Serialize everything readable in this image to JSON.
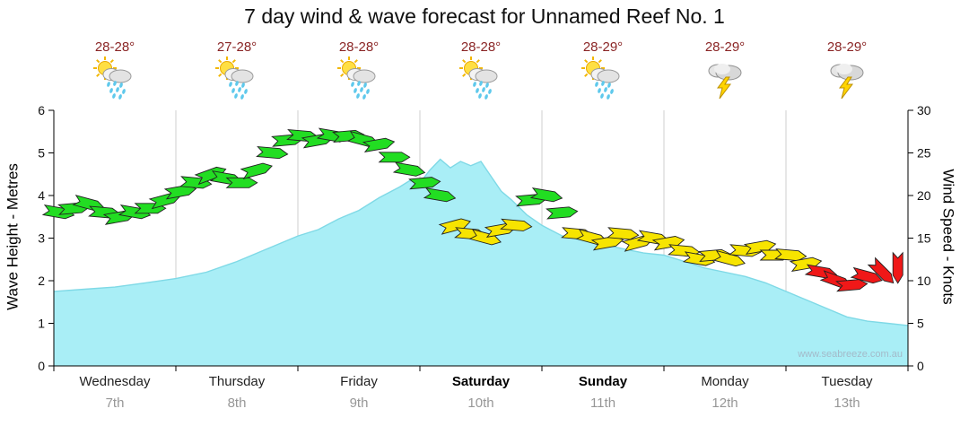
{
  "title": "7 day wind & wave forecast for Unnamed Reef No. 1",
  "watermark": "www.seabreeze.com.au",
  "days": [
    {
      "name": "Wednesday",
      "date": "7th",
      "temp": "28-28°",
      "icon": "sun-cloud-rain",
      "weekend": false
    },
    {
      "name": "Thursday",
      "date": "8th",
      "temp": "27-28°",
      "icon": "sun-cloud-rain",
      "weekend": false
    },
    {
      "name": "Friday",
      "date": "9th",
      "temp": "28-28°",
      "icon": "sun-cloud-rain",
      "weekend": false
    },
    {
      "name": "Saturday",
      "date": "10th",
      "temp": "28-28°",
      "icon": "sun-cloud-rain",
      "weekend": true
    },
    {
      "name": "Sunday",
      "date": "11th",
      "temp": "28-29°",
      "icon": "sun-cloud-rain",
      "weekend": true
    },
    {
      "name": "Monday",
      "date": "12th",
      "temp": "28-29°",
      "icon": "storm",
      "weekend": false
    },
    {
      "name": "Tuesday",
      "date": "13th",
      "temp": "28-29°",
      "icon": "storm",
      "weekend": false
    }
  ],
  "chart_data": {
    "type": "area+wind-arrows",
    "days_covered": 7,
    "x_axis": {
      "unit": "hours",
      "range": [
        0,
        168
      ],
      "hours_per_day": 24,
      "day_labels": [
        "Wednesday",
        "Thursday",
        "Friday",
        "Saturday",
        "Sunday",
        "Monday",
        "Tuesday"
      ],
      "date_labels": [
        "7th",
        "8th",
        "9th",
        "10th",
        "11th",
        "12th",
        "13th"
      ]
    },
    "y_left": {
      "label": "Wave Height - Metres",
      "min": 0,
      "max": 6,
      "tick_step": 1
    },
    "y_right": {
      "label": "Wind Speed - Knots",
      "min": 0,
      "max": 30,
      "tick_step": 5
    },
    "grid": {
      "vertical_day_lines": true,
      "horizontal_lines": false,
      "line_color": "#cfcfcf"
    },
    "wave_series": {
      "name": "Wave Height (metres)",
      "fill_color": "#a9eef6",
      "edge_color": "#7fd9e6",
      "x_hours": [
        0,
        6,
        12,
        18,
        24,
        30,
        36,
        42,
        48,
        52,
        56,
        60,
        64,
        68,
        70,
        72,
        74,
        76,
        78,
        80,
        82,
        84,
        86,
        88,
        90,
        93,
        96,
        100,
        104,
        108,
        112,
        116,
        120,
        124,
        128,
        132,
        136,
        140,
        144,
        148,
        152,
        156,
        160,
        164,
        168
      ],
      "metres": [
        1.75,
        1.8,
        1.85,
        1.95,
        2.05,
        2.2,
        2.45,
        2.75,
        3.05,
        3.2,
        3.45,
        3.65,
        3.95,
        4.2,
        4.35,
        4.3,
        4.6,
        4.85,
        4.65,
        4.8,
        4.7,
        4.8,
        4.45,
        4.1,
        3.9,
        3.55,
        3.3,
        3.05,
        2.95,
        2.85,
        2.75,
        2.65,
        2.6,
        2.45,
        2.3,
        2.2,
        2.1,
        1.95,
        1.75,
        1.55,
        1.35,
        1.15,
        1.05,
        1.0,
        0.95
      ]
    },
    "wind_series": {
      "name": "Wind Speed (knots)",
      "arrow_interval_hours": 3,
      "start_hour": 1,
      "knots": [
        18,
        18.5,
        19,
        18,
        17.5,
        18,
        18.5,
        19.5,
        20.5,
        21.5,
        22.5,
        22,
        21.5,
        23,
        25,
        26.5,
        27,
        26.5,
        27,
        27,
        26.5,
        26,
        24.5,
        23,
        21.5,
        20,
        16.5,
        15.5,
        15,
        16,
        16.5,
        19.5,
        20,
        18,
        15.5,
        15,
        14.5,
        15.5,
        14.5,
        15,
        14.5,
        13.5,
        12.5,
        13,
        12.5,
        13.5,
        14,
        13,
        13,
        12,
        11,
        10,
        9.5,
        10.5,
        11,
        11.5
      ],
      "dir_deg": [
        10,
        -5,
        15,
        5,
        -10,
        10,
        0,
        -15,
        -10,
        5,
        -20,
        10,
        0,
        -15,
        5,
        -5,
        5,
        -10,
        10,
        -5,
        15,
        -10,
        0,
        10,
        -5,
        10,
        -15,
        5,
        15,
        -10,
        5,
        -5,
        10,
        -5,
        5,
        15,
        -10,
        5,
        -15,
        10,
        -10,
        5,
        10,
        -5,
        15,
        5,
        -10,
        0,
        5,
        -10,
        10,
        20,
        -5,
        15,
        45,
        90
      ],
      "colors": {
        "strong_green": "#22dd22",
        "moderate_yellow": "#f7e400",
        "light_red": "#f01818"
      },
      "thresholds": {
        "green_min_knots": 17.5,
        "yellow_min_knots": 11.8
      },
      "arrow_outline": "#222222"
    }
  }
}
